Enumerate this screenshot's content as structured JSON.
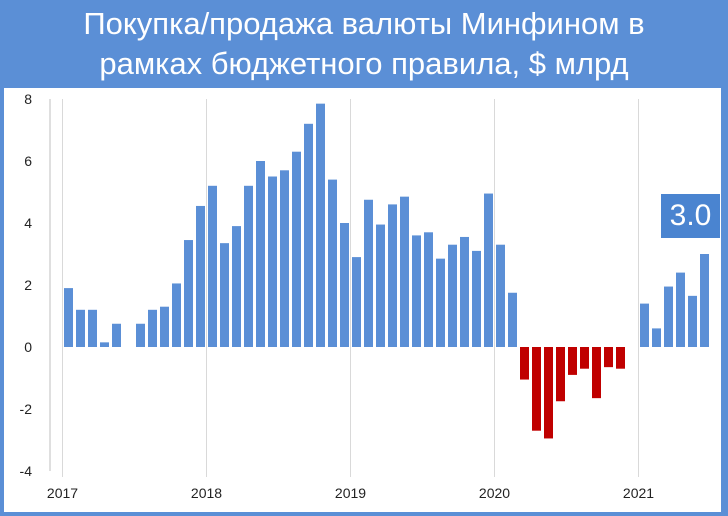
{
  "chart_data": {
    "type": "bar",
    "title": "Покупка/продажа валюты Минфином в рамках бюджетного правила, $ млрд",
    "title_lines": [
      "Покупка/продажа валюты Минфином в",
      "рамках бюджетного правила, $ млрд"
    ],
    "xlabel": "",
    "ylabel": "",
    "ylim": [
      -4,
      8
    ],
    "y_ticks": [
      8,
      6,
      4,
      2,
      0,
      -2,
      -4
    ],
    "x_tick_labels": [
      "2017",
      "2018",
      "2019",
      "2020",
      "2021"
    ],
    "grid": "vertical",
    "colors": {
      "positive": "#5b8fd6",
      "negative": "#c00000",
      "background": "#5b8fd6",
      "badge": "#4a84d0"
    },
    "annotation": "3.0",
    "categories": [
      "2017-01",
      "2017-02",
      "2017-03",
      "2017-04",
      "2017-05",
      "2017-06",
      "2017-07",
      "2017-08",
      "2017-09",
      "2017-10",
      "2017-11",
      "2017-12",
      "2018-01",
      "2018-02",
      "2018-03",
      "2018-04",
      "2018-05",
      "2018-06",
      "2018-07",
      "2018-08",
      "2018-09",
      "2018-10",
      "2018-11",
      "2018-12",
      "2019-01",
      "2019-02",
      "2019-03",
      "2019-04",
      "2019-05",
      "2019-06",
      "2019-07",
      "2019-08",
      "2019-09",
      "2019-10",
      "2019-11",
      "2019-12",
      "2020-01",
      "2020-02",
      "2020-03",
      "2020-04",
      "2020-05",
      "2020-06",
      "2020-07",
      "2020-08",
      "2020-09",
      "2020-10",
      "2020-11",
      "2020-12",
      "2021-01",
      "2021-02",
      "2021-03",
      "2021-04",
      "2021-05",
      "2021-06"
    ],
    "values": [
      1.9,
      1.2,
      1.2,
      0.15,
      0.75,
      0,
      0.75,
      1.2,
      1.3,
      2.05,
      3.45,
      4.55,
      5.2,
      3.35,
      3.9,
      5.2,
      6.0,
      5.5,
      5.7,
      6.3,
      7.2,
      7.85,
      5.4,
      4.0,
      2.9,
      4.75,
      3.95,
      4.6,
      4.85,
      3.6,
      3.7,
      2.85,
      3.3,
      3.55,
      3.1,
      4.95,
      3.3,
      1.75,
      -1.05,
      -2.7,
      -2.95,
      -1.75,
      -0.9,
      -0.7,
      -1.65,
      -0.65,
      -0.7,
      0,
      1.4,
      0.6,
      1.95,
      2.4,
      1.65,
      3.0
    ]
  }
}
